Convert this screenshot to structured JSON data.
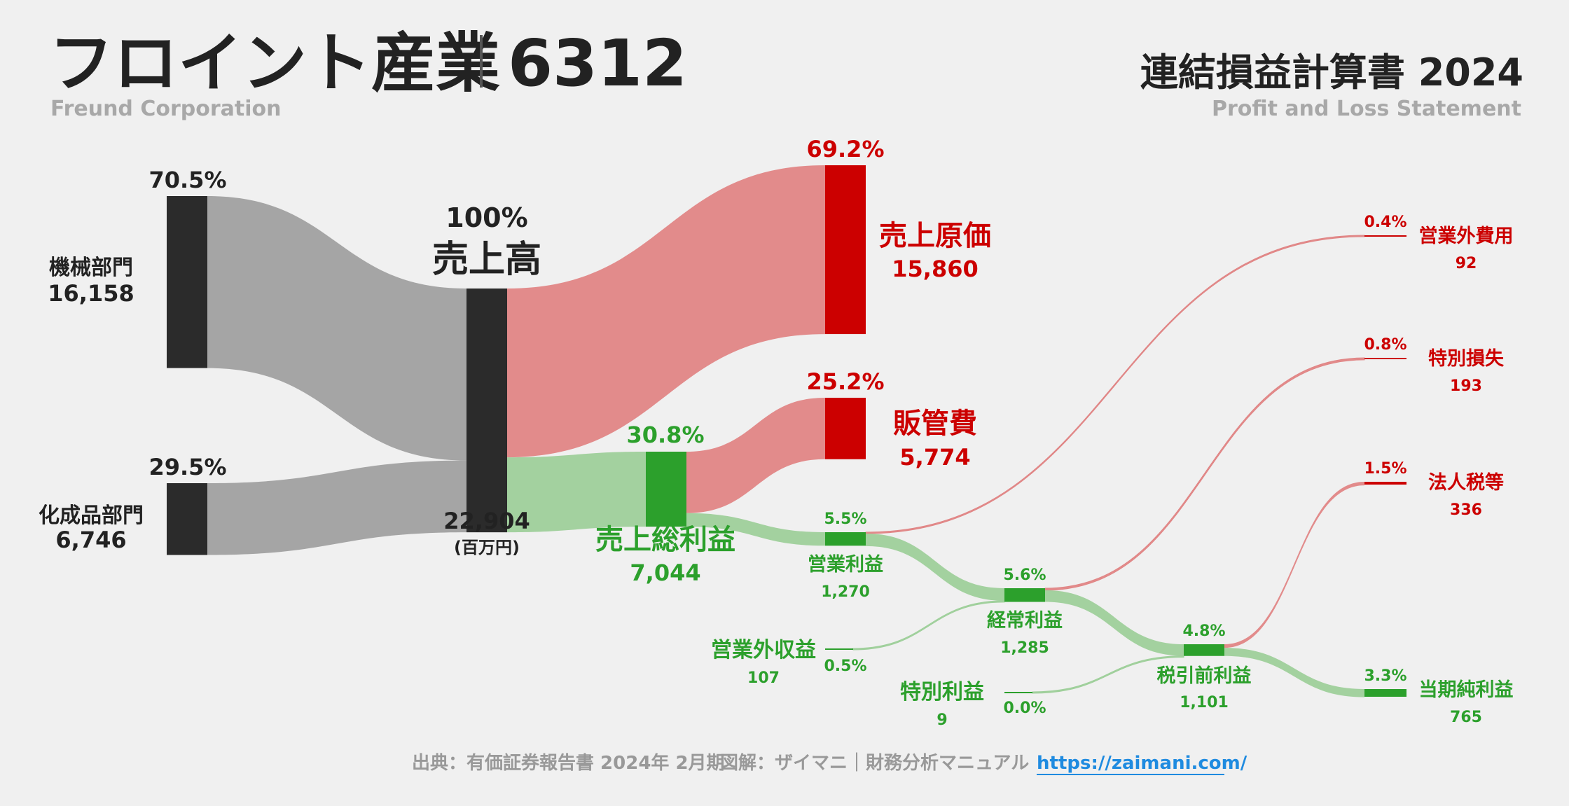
{
  "header": {
    "company": "フロイント産業",
    "code": "6312",
    "company_en": "Freund Corporation",
    "report_title": "連結損益計算書 2024",
    "report_title_en": "Profit and Loss Statement"
  },
  "footer": {
    "source": "出典：有価証券報告書 2024年 2月期",
    "credit": "図解：ザイマニ｜財務分析マニュアル",
    "link": "https://zaimani.com/"
  },
  "colors": {
    "dark": "#2b2b2b",
    "grey_flow": "#a0a0a0",
    "red": "#cc0000",
    "red_flow": "#e08585",
    "green": "#2ca02c",
    "green_flow": "#9ecf9a",
    "green_text": "#2ca02c",
    "red_text": "#cc0000"
  },
  "chart_data": {
    "type": "sankey",
    "unit": "(百万円)",
    "nodes": [
      {
        "id": "seg1",
        "label": "機械部門",
        "value_text": "16,158",
        "pct": "70.5%",
        "value": 16158
      },
      {
        "id": "seg2",
        "label": "化成品部門",
        "value_text": "6,746",
        "pct": "29.5%",
        "value": 6746
      },
      {
        "id": "revenue",
        "label": "売上高",
        "value_text": "22,904",
        "pct": "100%",
        "value": 22904
      },
      {
        "id": "cogs",
        "label": "売上原価",
        "value_text": "15,860",
        "pct": "69.2%",
        "value": 15860
      },
      {
        "id": "gross",
        "label": "売上総利益",
        "value_text": "7,044",
        "pct": "30.8%",
        "value": 7044
      },
      {
        "id": "sga",
        "label": "販管費",
        "value_text": "5,774",
        "pct": "25.2%",
        "value": 5774
      },
      {
        "id": "op",
        "label": "営業利益",
        "value_text": "1,270",
        "pct": "5.5%",
        "value": 1270
      },
      {
        "id": "nonop_inc",
        "label": "営業外収益",
        "value_text": "107",
        "pct": "0.5%",
        "value": 107
      },
      {
        "id": "nonop_exp",
        "label": "営業外費用",
        "value_text": "92",
        "pct": "0.4%",
        "value": 92
      },
      {
        "id": "ordinary",
        "label": "経常利益",
        "value_text": "1,285",
        "pct": "5.6%",
        "value": 1285
      },
      {
        "id": "sp_gain",
        "label": "特別利益",
        "value_text": "9",
        "pct": "0.0%",
        "value": 9
      },
      {
        "id": "sp_loss",
        "label": "特別損失",
        "value_text": "193",
        "pct": "0.8%",
        "value": 193
      },
      {
        "id": "pretax",
        "label": "税引前利益",
        "value_text": "1,101",
        "pct": "4.8%",
        "value": 1101
      },
      {
        "id": "tax",
        "label": "法人税等",
        "value_text": "336",
        "pct": "1.5%",
        "value": 336
      },
      {
        "id": "net",
        "label": "当期純利益",
        "value_text": "765",
        "pct": "3.3%",
        "value": 765
      }
    ],
    "links": [
      {
        "source": "seg1",
        "target": "revenue",
        "value": 16158
      },
      {
        "source": "seg2",
        "target": "revenue",
        "value": 6746
      },
      {
        "source": "revenue",
        "target": "cogs",
        "value": 15860
      },
      {
        "source": "revenue",
        "target": "gross",
        "value": 7044
      },
      {
        "source": "gross",
        "target": "sga",
        "value": 5774
      },
      {
        "source": "gross",
        "target": "op",
        "value": 1270
      },
      {
        "source": "op",
        "target": "nonop_exp",
        "value": 92
      },
      {
        "source": "op",
        "target": "ordinary",
        "value": 1178
      },
      {
        "source": "nonop_inc",
        "target": "ordinary",
        "value": 107
      },
      {
        "source": "ordinary",
        "target": "sp_loss",
        "value": 193
      },
      {
        "source": "ordinary",
        "target": "pretax",
        "value": 1092
      },
      {
        "source": "sp_gain",
        "target": "pretax",
        "value": 9
      },
      {
        "source": "pretax",
        "target": "tax",
        "value": 336
      },
      {
        "source": "pretax",
        "target": "net",
        "value": 765
      }
    ]
  }
}
